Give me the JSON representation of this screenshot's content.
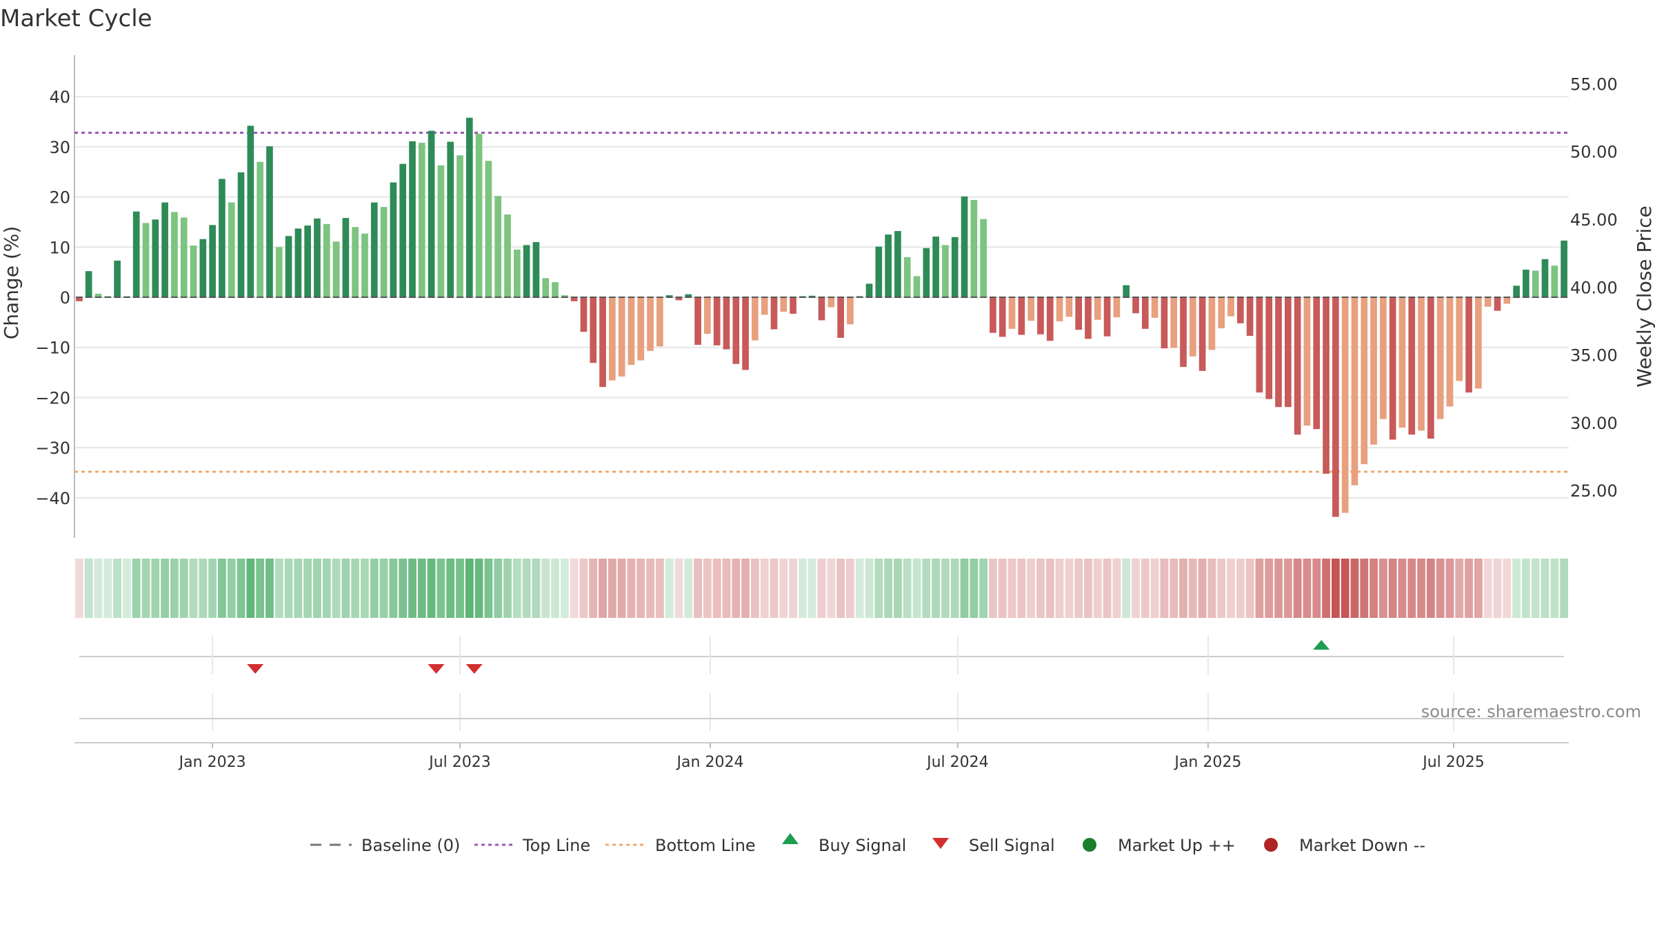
{
  "chart_data": {
    "type": "bar",
    "title": "Market Cycle",
    "ylabel": "Change (%)",
    "y2label": "Weekly Close Price",
    "ylim": [
      -48,
      48
    ],
    "y_ticks": [
      "40",
      "30",
      "20",
      "10",
      "0",
      "−10",
      "−20",
      "−30",
      "−40"
    ],
    "y2lim": [
      21.5,
      57
    ],
    "y2_ticks": [
      "55.00",
      "50.00",
      "45.00",
      "40.00",
      "35.00",
      "30.00",
      "25.00"
    ],
    "top_line": 32.8,
    "bottom_line": -34.8,
    "baseline": 0,
    "x_start_week": -14.5,
    "x_ticks": [
      {
        "label": "Jan 2023",
        "week": 0
      },
      {
        "label": "Jul 2023",
        "week": 26
      },
      {
        "label": "Jan 2024",
        "week": 52.3
      },
      {
        "label": "Jul 2024",
        "week": 78.3
      },
      {
        "label": "Jan 2025",
        "week": 104.6
      },
      {
        "label": "Jul 2025",
        "week": 130.4
      }
    ],
    "weekly_change_pct": [
      -0.8,
      5.2,
      0.7,
      0,
      7.3,
      0,
      17.1,
      14.8,
      15.5,
      18.9,
      17.0,
      15.9,
      10.3,
      11.6,
      14.4,
      23.6,
      18.9,
      24.9,
      34.2,
      27.0,
      30.1,
      10.0,
      12.2,
      13.7,
      14.3,
      15.7,
      14.6,
      11.1,
      15.8,
      14.0,
      12.7,
      18.9,
      18.0,
      22.9,
      26.6,
      31.1,
      30.8,
      33.2,
      26.3,
      31.0,
      28.3,
      35.8,
      32.6,
      27.2,
      20.2,
      16.5,
      9.5,
      10.4,
      11.0,
      3.8,
      3.0,
      0.4,
      -0.8,
      -6.9,
      -13.1,
      -17.9,
      -16.6,
      -15.8,
      -13.5,
      -12.6,
      -10.7,
      -9.8,
      0.4,
      -0.6,
      0.6,
      -9.5,
      -7.3,
      -9.6,
      -10.4,
      -13.3,
      -14.5,
      -8.6,
      -3.5,
      -6.4,
      -2.9,
      -3.3,
      0,
      0.3,
      -4.6,
      -2.0,
      -8.1,
      -5.4,
      0,
      2.7,
      10.1,
      12.5,
      13.2,
      8.0,
      4.2,
      9.8,
      12.1,
      10.4,
      12.0,
      20.1,
      19.4,
      15.6,
      -7.1,
      -7.9,
      -6.3,
      -7.5,
      -4.7,
      -7.4,
      -8.7,
      -4.8,
      -3.9,
      -6.5,
      -8.3,
      -4.5,
      -7.8,
      -4.0,
      2.4,
      -3.2,
      -6.3,
      -4.1,
      -10.2,
      -10.1,
      -13.9,
      -11.8,
      -14.7,
      -10.5,
      -6.2,
      -3.8,
      -5.2,
      -7.7,
      -19.0,
      -20.3,
      -21.9,
      -21.9,
      -27.4,
      -25.6,
      -26.3,
      -35.2,
      -43.8,
      -43.0,
      -37.5,
      -33.3,
      -29.4,
      -24.3,
      -28.4,
      -26.0,
      -27.4,
      -26.6,
      -28.2,
      -24.3,
      -21.8,
      -16.7,
      -19.0,
      -18.2,
      -1.9,
      -2.7,
      -1.3,
      2.3,
      5.5,
      5.3,
      7.6,
      6.3,
      11.3
    ],
    "signals": [
      {
        "type": "sell",
        "week": 4.5
      },
      {
        "type": "sell",
        "week": 23.5
      },
      {
        "type": "sell",
        "week": 27.5
      },
      {
        "type": "buy",
        "week": 116.5
      }
    ],
    "legend": [
      {
        "key": "baseline",
        "label": "Baseline (0)"
      },
      {
        "key": "top",
        "label": "Top Line"
      },
      {
        "key": "bottom",
        "label": "Bottom Line"
      },
      {
        "key": "buy",
        "label": "Buy Signal"
      },
      {
        "key": "sell",
        "label": "Sell Signal"
      },
      {
        "key": "up",
        "label": "Market Up ++"
      },
      {
        "key": "down",
        "label": "Market Down --"
      }
    ],
    "source": "source: sharemaestro.com"
  },
  "colors": {
    "up_strong": "#2e8b57",
    "up_light": "#7cc47f",
    "down_strong": "#c85a5a",
    "down_light": "#e8a07e",
    "top_line": "#9b59b6",
    "bottom_line": "#f0a868",
    "buy": "#1e9e50",
    "sell": "#d32f2f",
    "market_up": "#1a7f2a",
    "market_down": "#b02424",
    "grid": "#e6e6e6",
    "axis": "#bbbbbb"
  }
}
